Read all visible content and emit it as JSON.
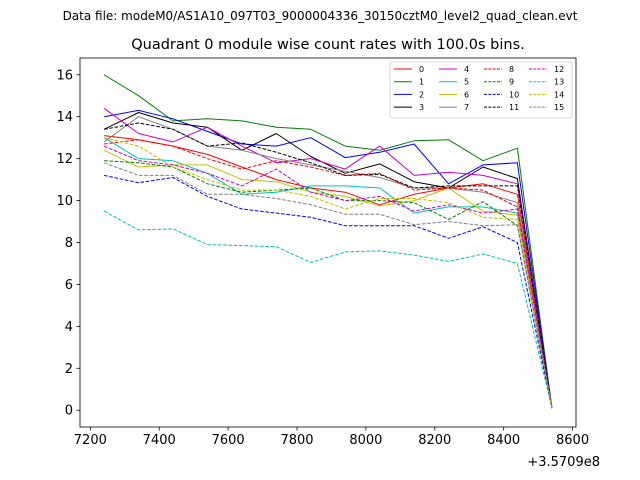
{
  "chart_data": {
    "type": "line",
    "suptitle": "Data file: modeM0/AS1A10_097T03_9000004336_30150cztM0_level2_quad_clean.evt",
    "title": "Quadrant 0 module wise count rates with 100.0s bins.",
    "x_offset_label": "+3.5709e8",
    "xlabel": "",
    "ylabel": "",
    "xlim": [
      7170,
      8610
    ],
    "ylim": [
      -0.8,
      16.8
    ],
    "x_ticks": [
      7200,
      7400,
      7600,
      7800,
      8000,
      8200,
      8400,
      8600
    ],
    "y_ticks": [
      0,
      2,
      4,
      6,
      8,
      10,
      12,
      14,
      16
    ],
    "x": [
      7240,
      7340,
      7440,
      7540,
      7640,
      7740,
      7840,
      7940,
      8040,
      8140,
      8240,
      8340,
      8440,
      8540
    ],
    "legend_position": "top-right",
    "series": [
      {
        "name": "0",
        "color": "#ff0000",
        "dash": "solid",
        "values": [
          13.1,
          12.9,
          12.6,
          12.2,
          11.6,
          11.0,
          10.6,
          10.4,
          9.8,
          10.3,
          10.6,
          10.8,
          10.3,
          0.1
        ]
      },
      {
        "name": "1",
        "color": "#008000",
        "dash": "solid",
        "values": [
          16.0,
          15.0,
          13.8,
          13.9,
          13.8,
          13.5,
          13.4,
          12.6,
          12.4,
          12.85,
          12.9,
          11.9,
          12.5,
          0.1
        ]
      },
      {
        "name": "2",
        "color": "#0000ff",
        "dash": "solid",
        "values": [
          14.0,
          14.3,
          13.9,
          13.3,
          12.7,
          12.6,
          13.0,
          12.05,
          12.3,
          12.7,
          10.8,
          11.7,
          11.8,
          0.1
        ]
      },
      {
        "name": "3",
        "color": "#000000",
        "dash": "solid",
        "values": [
          13.4,
          14.2,
          13.7,
          13.5,
          12.4,
          13.2,
          12.1,
          11.3,
          11.75,
          10.9,
          10.6,
          11.6,
          11.05,
          0.1
        ]
      },
      {
        "name": "4",
        "color": "#cc00cc",
        "dash": "solid",
        "values": [
          14.4,
          13.2,
          12.8,
          13.5,
          12.6,
          11.8,
          12.0,
          11.5,
          12.6,
          11.2,
          11.35,
          11.2,
          10.8,
          0.1
        ]
      },
      {
        "name": "5",
        "color": "#00c0c0",
        "dash": "solid",
        "values": [
          13.0,
          12.0,
          11.9,
          11.3,
          10.3,
          10.4,
          10.7,
          10.7,
          10.6,
          9.4,
          9.7,
          9.7,
          9.4,
          0.1
        ]
      },
      {
        "name": "6",
        "color": "#c0c000",
        "dash": "solid",
        "values": [
          12.4,
          11.6,
          11.7,
          11.7,
          11.0,
          10.9,
          10.4,
          10.2,
          9.75,
          10.0,
          10.6,
          9.5,
          9.3,
          0.1
        ]
      },
      {
        "name": "7",
        "color": "#808080",
        "dash": "solid",
        "values": [
          12.8,
          14.0,
          13.4,
          12.6,
          12.4,
          12.0,
          11.7,
          11.4,
          11.1,
          10.6,
          10.6,
          10.4,
          9.9,
          0.1
        ]
      },
      {
        "name": "8",
        "color": "#ff0000",
        "dash": "dashed",
        "values": [
          12.7,
          12.9,
          12.6,
          12.0,
          11.5,
          11.9,
          11.6,
          11.2,
          11.3,
          10.5,
          10.6,
          10.5,
          9.7,
          0.1
        ]
      },
      {
        "name": "9",
        "color": "#008000",
        "dash": "dashed",
        "values": [
          11.9,
          11.8,
          11.6,
          10.8,
          10.4,
          10.5,
          10.6,
          10.0,
          10.0,
          9.9,
          9.1,
          9.95,
          8.8,
          0.1
        ]
      },
      {
        "name": "10",
        "color": "#0000ff",
        "dash": "dashed",
        "values": [
          11.2,
          10.85,
          11.1,
          10.2,
          9.6,
          9.4,
          9.2,
          8.8,
          8.8,
          8.8,
          8.2,
          8.75,
          8.0,
          0.1
        ]
      },
      {
        "name": "11",
        "color": "#000000",
        "dash": "dashed",
        "values": [
          13.4,
          13.7,
          13.4,
          12.6,
          12.75,
          12.3,
          11.8,
          11.2,
          11.25,
          10.6,
          10.7,
          10.7,
          10.7,
          0.1
        ]
      },
      {
        "name": "12",
        "color": "#cc00cc",
        "dash": "dashed",
        "values": [
          12.6,
          11.9,
          11.7,
          11.3,
          10.7,
          11.5,
          10.4,
          10.0,
          10.2,
          9.5,
          9.8,
          9.4,
          9.6,
          0.1
        ]
      },
      {
        "name": "13",
        "color": "#00c0c0",
        "dash": "dashed",
        "values": [
          9.5,
          8.6,
          8.65,
          7.9,
          7.85,
          7.8,
          7.05,
          7.55,
          7.6,
          7.4,
          7.1,
          7.45,
          7.0,
          0.1
        ]
      },
      {
        "name": "14",
        "color": "#c0c000",
        "dash": "dashed",
        "values": [
          13.0,
          12.6,
          11.6,
          11.0,
          10.5,
          10.5,
          10.2,
          9.6,
          10.1,
          10.1,
          9.9,
          9.2,
          9.1,
          0.1
        ]
      },
      {
        "name": "15",
        "color": "#808080",
        "dash": "dashed",
        "values": [
          11.8,
          11.2,
          11.2,
          10.3,
          10.3,
          10.1,
          9.8,
          9.35,
          9.35,
          8.85,
          9.0,
          8.8,
          8.85,
          0.1
        ]
      }
    ]
  }
}
